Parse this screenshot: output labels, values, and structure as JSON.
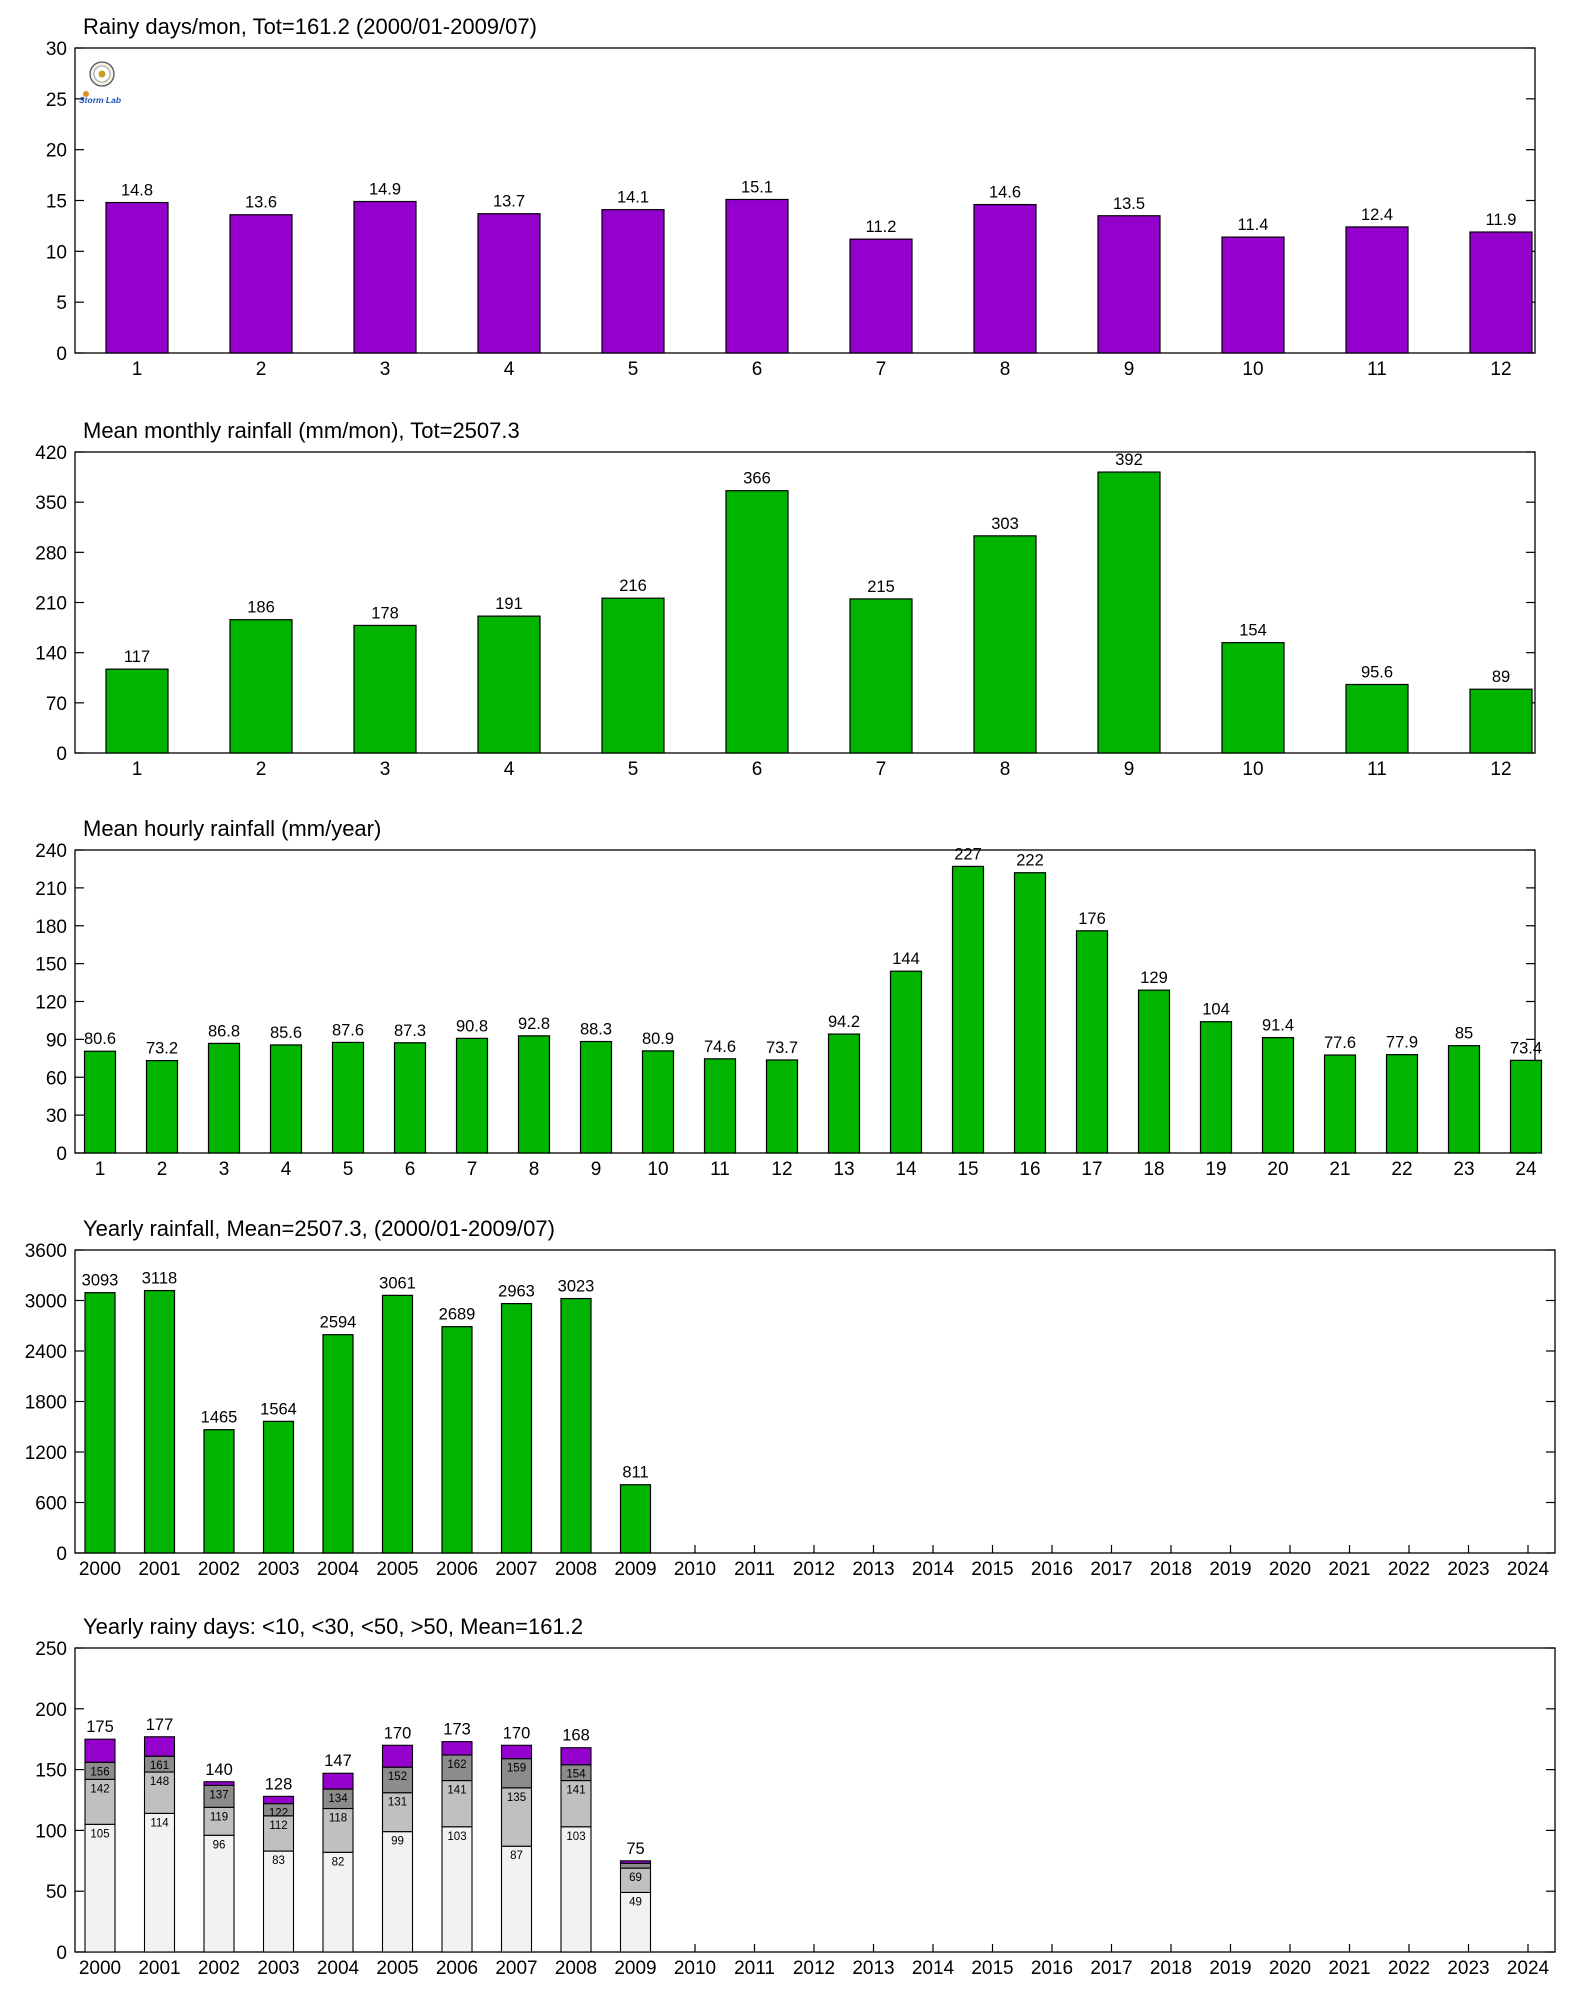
{
  "colors": {
    "purple": "#9400cc",
    "green": "#00b400",
    "seg1": "#f2f2f2",
    "seg2": "#c0c0c0",
    "seg3": "#8c8c8c"
  },
  "logo": {
    "text": "Storm Lab"
  },
  "chart_data": [
    {
      "type": "bar",
      "title": "Rainy days/mon, Tot=161.2 (2000/01-2009/07)",
      "categories": [
        "1",
        "2",
        "3",
        "4",
        "5",
        "6",
        "7",
        "8",
        "9",
        "10",
        "11",
        "12"
      ],
      "values": [
        14.8,
        13.6,
        14.9,
        13.7,
        14.1,
        15.1,
        11.2,
        14.6,
        13.5,
        11.4,
        12.4,
        11.9
      ],
      "labels": [
        "14.8",
        "13.6",
        "14.9",
        "13.7",
        "14.1",
        "15.1",
        "11.2",
        "14.6",
        "13.5",
        "11.4",
        "12.4",
        "11.9"
      ],
      "ylim": [
        0,
        30
      ],
      "yticks": [
        0,
        5,
        10,
        15,
        20,
        25,
        30
      ],
      "color": "#9400cc"
    },
    {
      "type": "bar",
      "title": "Mean monthly rainfall (mm/mon), Tot=2507.3",
      "categories": [
        "1",
        "2",
        "3",
        "4",
        "5",
        "6",
        "7",
        "8",
        "9",
        "10",
        "11",
        "12"
      ],
      "values": [
        117,
        186,
        178,
        191,
        216,
        366,
        215,
        303,
        392,
        154,
        95.6,
        89
      ],
      "labels": [
        "117",
        "186",
        "178",
        "191",
        "216",
        "366",
        "215",
        "303",
        "392",
        "154",
        "95.6",
        "89"
      ],
      "ylim": [
        0,
        420
      ],
      "yticks": [
        0,
        70,
        140,
        210,
        280,
        350,
        420
      ],
      "color": "#00b400"
    },
    {
      "type": "bar",
      "title": "Mean hourly rainfall (mm/year)",
      "categories": [
        "1",
        "2",
        "3",
        "4",
        "5",
        "6",
        "7",
        "8",
        "9",
        "10",
        "11",
        "12",
        "13",
        "14",
        "15",
        "16",
        "17",
        "18",
        "19",
        "20",
        "21",
        "22",
        "23",
        "24"
      ],
      "values": [
        80.6,
        73.2,
        86.8,
        85.6,
        87.6,
        87.3,
        90.8,
        92.8,
        88.3,
        80.9,
        74.6,
        73.7,
        94.2,
        144,
        227,
        222,
        176,
        129,
        104,
        91.4,
        77.6,
        77.9,
        85,
        73.4
      ],
      "labels": [
        "80.6",
        "73.2",
        "86.8",
        "85.6",
        "87.6",
        "87.3",
        "90.8",
        "92.8",
        "88.3",
        "80.9",
        "74.6",
        "73.7",
        "94.2",
        "144",
        "227",
        "222",
        "176",
        "129",
        "104",
        "91.4",
        "77.6",
        "77.9",
        "85",
        "73.4"
      ],
      "ylim": [
        0,
        240
      ],
      "yticks": [
        0,
        30,
        60,
        90,
        120,
        150,
        180,
        210,
        240
      ],
      "color": "#00b400"
    },
    {
      "type": "bar",
      "title": "Yearly rainfall, Mean=2507.3, (2000/01-2009/07)",
      "categories": [
        "2000",
        "2001",
        "2002",
        "2003",
        "2004",
        "2005",
        "2006",
        "2007",
        "2008",
        "2009",
        "2010",
        "2011",
        "2012",
        "2013",
        "2014",
        "2015",
        "2016",
        "2017",
        "2018",
        "2019",
        "2020",
        "2021",
        "2022",
        "2023",
        "2024"
      ],
      "values": [
        3093,
        3118,
        1465,
        1564,
        2594,
        3061,
        2689,
        2963,
        3023,
        811
      ],
      "labels": [
        "3093",
        "3118",
        "1465",
        "1564",
        "2594",
        "3061",
        "2689",
        "2963",
        "3023",
        "811"
      ],
      "ylim": [
        0,
        3600
      ],
      "yticks": [
        0,
        600,
        1200,
        1800,
        2400,
        3000,
        3600
      ],
      "color": "#00b400"
    },
    {
      "type": "stacked-bar",
      "title": "Yearly rainy days: <10, <30, <50, >50, Mean=161.2",
      "categories": [
        "2000",
        "2001",
        "2002",
        "2003",
        "2004",
        "2005",
        "2006",
        "2007",
        "2008",
        "2009",
        "2010",
        "2011",
        "2012",
        "2013",
        "2014",
        "2015",
        "2016",
        "2017",
        "2018",
        "2019",
        "2020",
        "2021",
        "2022",
        "2023",
        "2024"
      ],
      "cumulative": [
        [
          105,
          142,
          156,
          175
        ],
        [
          114,
          148,
          161,
          177
        ],
        [
          96,
          119,
          137,
          140
        ],
        [
          83,
          112,
          122,
          128
        ],
        [
          82,
          118,
          134,
          147
        ],
        [
          99,
          131,
          152,
          170
        ],
        [
          103,
          141,
          162,
          173
        ],
        [
          87,
          135,
          159,
          170
        ],
        [
          103,
          141,
          154,
          168
        ],
        [
          49,
          69,
          73,
          75
        ]
      ],
      "ylim": [
        0,
        250
      ],
      "yticks": [
        0,
        50,
        100,
        150,
        200,
        250
      ]
    }
  ]
}
